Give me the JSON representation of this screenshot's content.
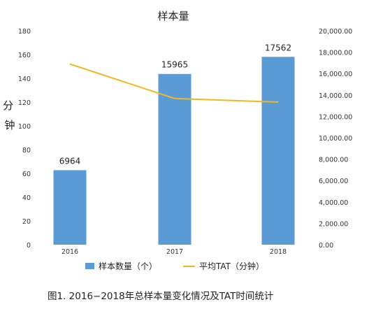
{
  "chart_data": {
    "type": "bar+line",
    "title": "样本量",
    "categories": [
      "2016",
      "2017",
      "2018"
    ],
    "series": [
      {
        "name": "样本数量（个）",
        "type": "bar",
        "axis": "right",
        "values": [
          6964,
          15965,
          17562
        ],
        "data_labels": [
          "6964",
          "15965",
          "17562"
        ],
        "color": "#5b9bd5"
      },
      {
        "name": "平均TAT（分钟）",
        "type": "line",
        "axis": "left",
        "values": [
          152,
          123,
          120
        ],
        "color": "#f5b620"
      }
    ],
    "ylabel": "分钟",
    "ylim": [
      0,
      180
    ],
    "y_ticks": [
      "0",
      "20",
      "40",
      "60",
      "80",
      "100",
      "120",
      "140",
      "160",
      "180"
    ],
    "y2lim": [
      0,
      20000
    ],
    "y2_ticks": [
      "0.00",
      "2,000.00",
      "4,000.00",
      "6,000.00",
      "8,000.00",
      "10,000.00",
      "12,000.00",
      "14,000.00",
      "16,000.00",
      "18,000.00",
      "20,000.00"
    ],
    "grid": false,
    "legend_position": "bottom"
  },
  "caption": "图1. 2016−2018年总样本量变化情况及TAT时间统计"
}
